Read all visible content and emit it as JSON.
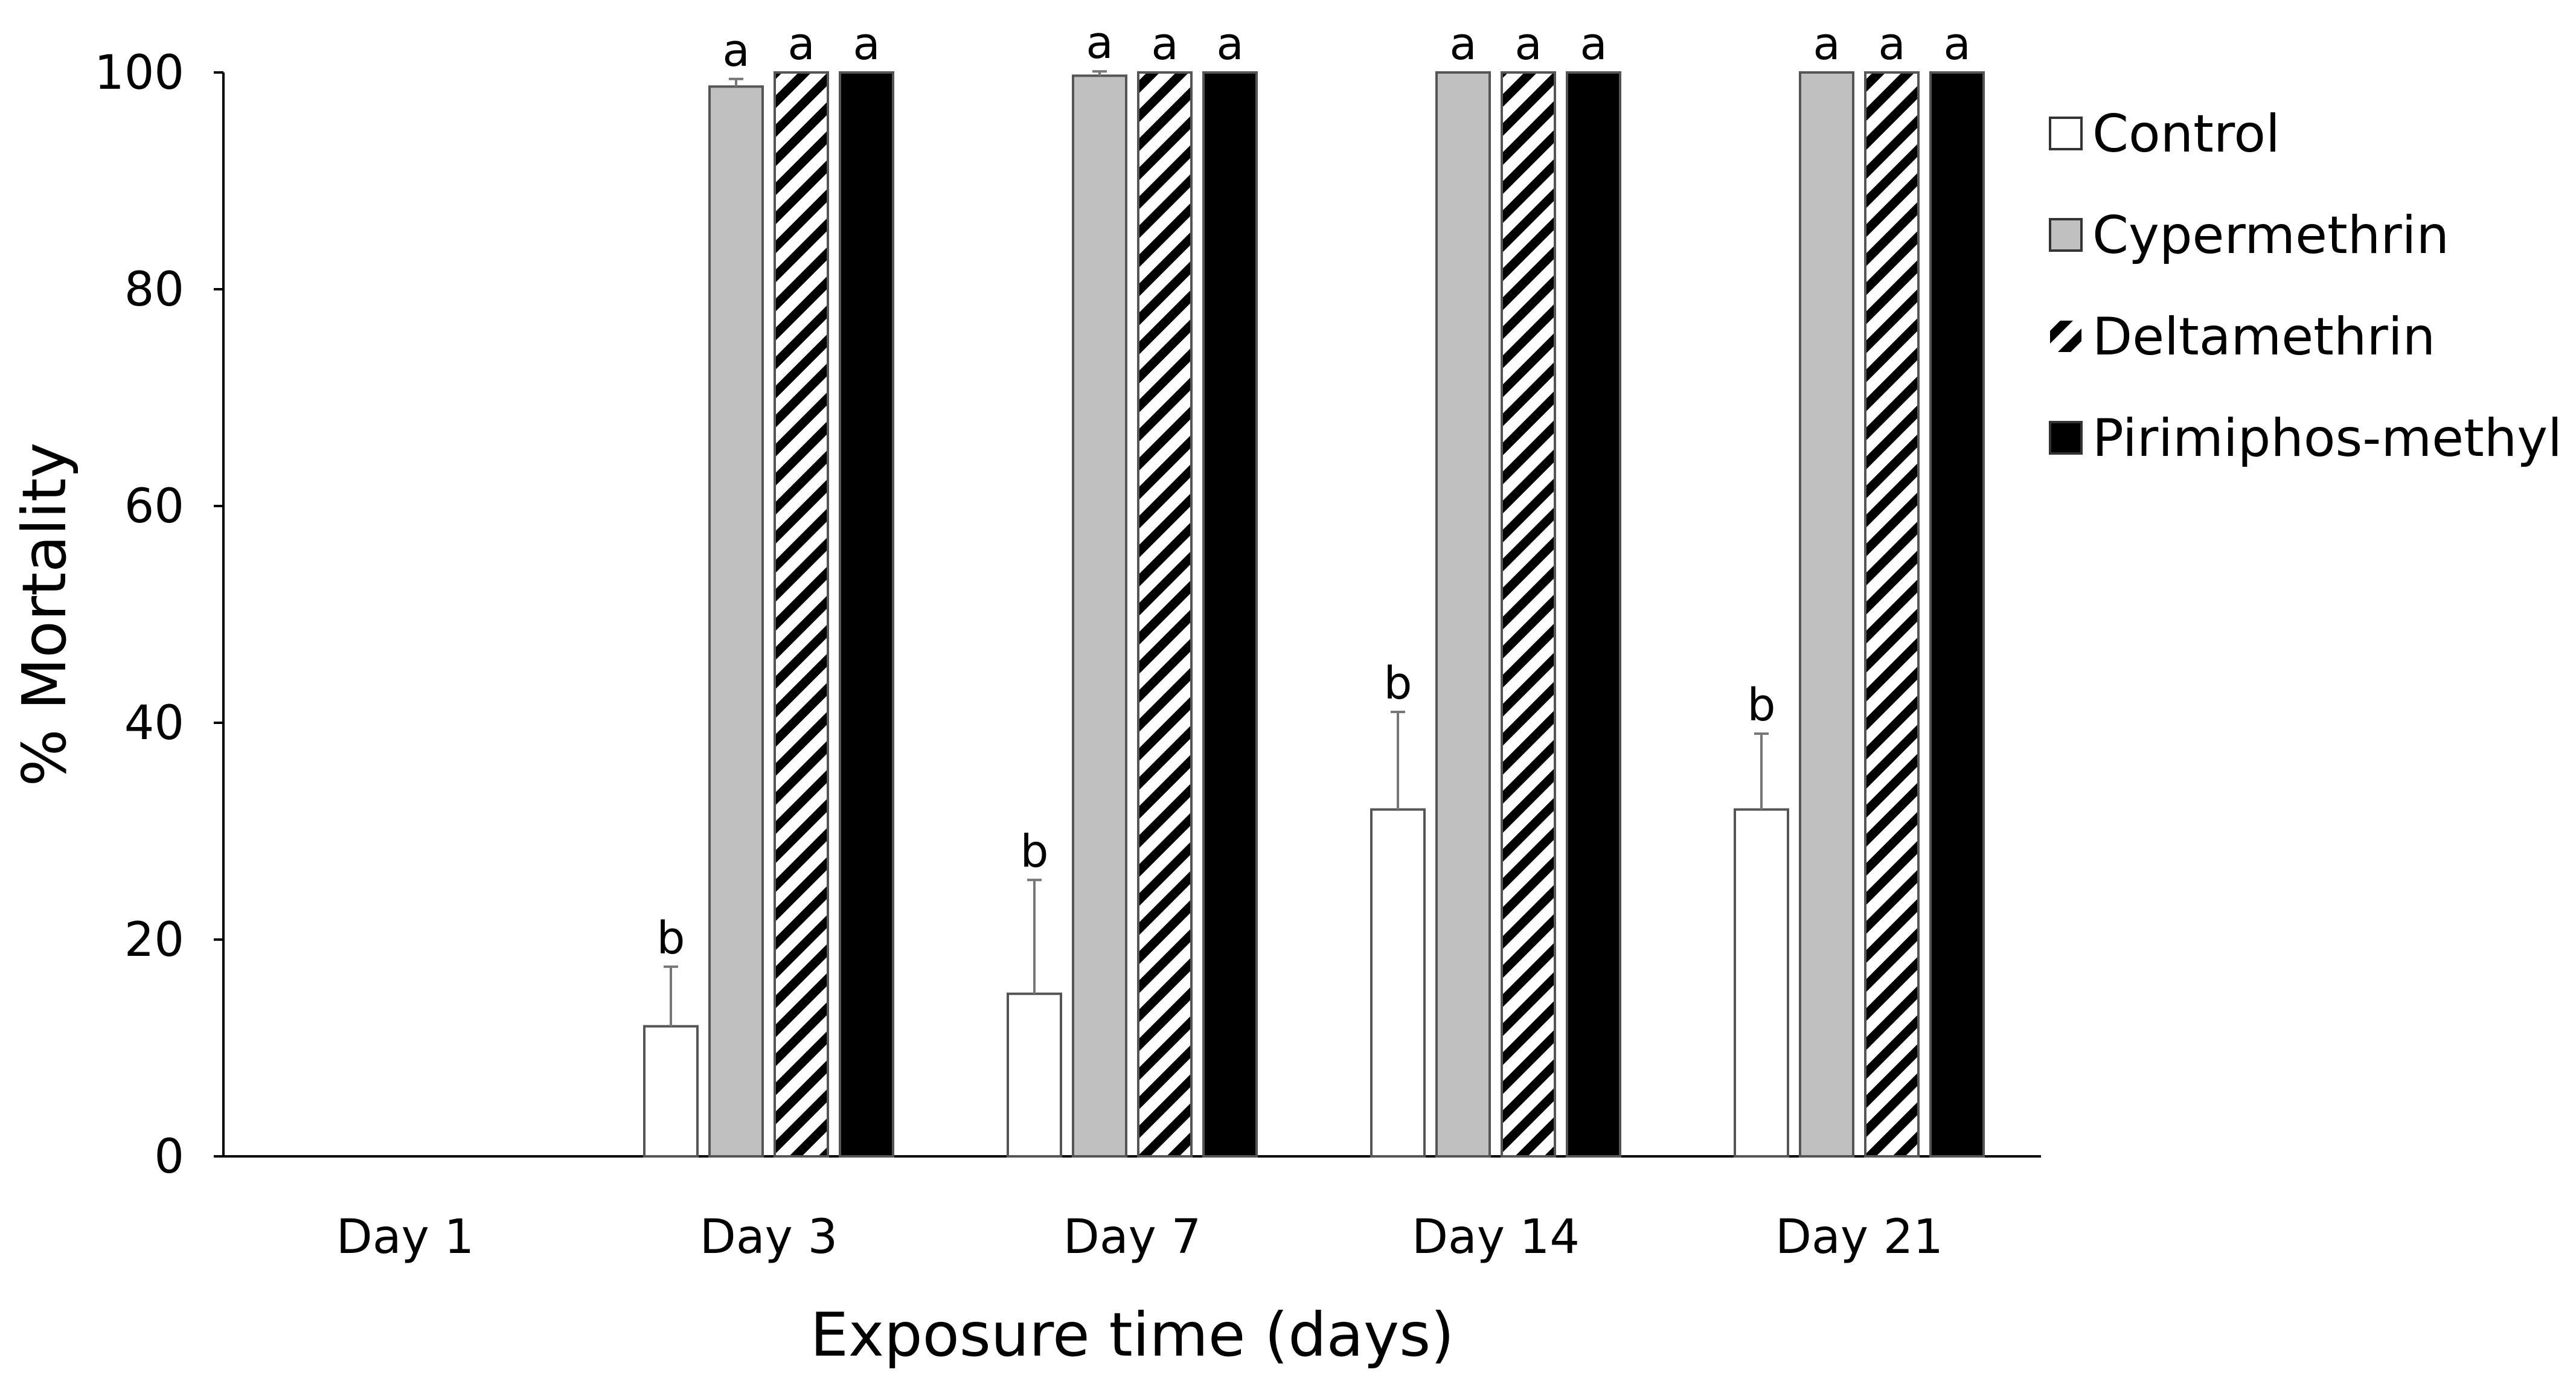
{
  "chart_data": {
    "type": "bar",
    "title": "",
    "xlabel": "Exposure time (days)",
    "ylabel": "% Mortality",
    "ylim": [
      0,
      100
    ],
    "yticks": [
      0,
      20,
      40,
      60,
      80,
      100
    ],
    "grid": false,
    "legend_position": "right",
    "categories": [
      "Day 1",
      "Day 3",
      "Day 7",
      "Day 14",
      "Day 21"
    ],
    "series": [
      {
        "name": "Control",
        "fill": "#ffffff",
        "pattern": "none",
        "values": [
          0,
          12,
          15,
          32,
          32
        ],
        "errors": [
          0,
          5.5,
          10.5,
          9,
          7
        ],
        "letters": [
          "",
          "b",
          "b",
          "b",
          "b"
        ]
      },
      {
        "name": "Cypermethrin",
        "fill": "#c0c0c0",
        "pattern": "none",
        "values": [
          0,
          98.7,
          99.7,
          100,
          100
        ],
        "errors": [
          0,
          0.7,
          0.4,
          0,
          0
        ],
        "letters": [
          "",
          "a",
          "a",
          "a",
          "a"
        ]
      },
      {
        "name": "Deltamethrin",
        "fill": "#ffffff",
        "pattern": "diagonal-stripes",
        "values": [
          0,
          100,
          100,
          100,
          100
        ],
        "errors": [
          0,
          0,
          0,
          0,
          0
        ],
        "letters": [
          "",
          "a",
          "a",
          "a",
          "a"
        ]
      },
      {
        "name": "Pirimiphos-methyl",
        "fill": "#000000",
        "pattern": "none",
        "values": [
          0,
          100,
          100,
          100,
          100
        ],
        "errors": [
          0,
          0,
          0,
          0,
          0
        ],
        "letters": [
          "",
          "a",
          "a",
          "a",
          "a"
        ]
      }
    ]
  }
}
